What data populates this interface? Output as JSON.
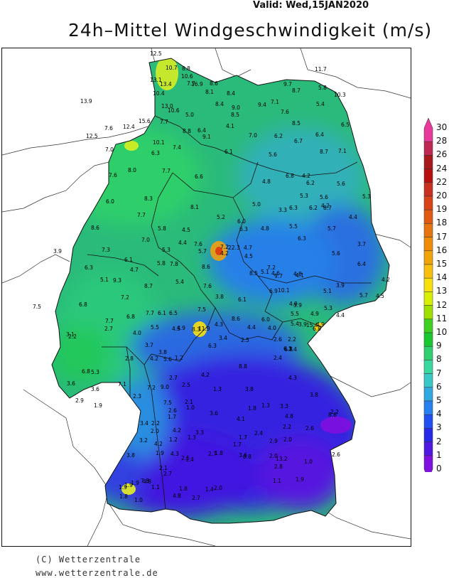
{
  "valid_text": "Valid:  Wed,15JAN2020",
  "title": "24h–Mittel Windgeschwindigkeit (m/s)",
  "credit_line1": "(C) Wetterzentrale",
  "credit_line2": "www.wetterzentrale.de",
  "legend": {
    "ticks": [
      "30",
      "28",
      "26",
      "24",
      "22",
      "20",
      "19",
      "18",
      "17",
      "16",
      "15",
      "14",
      "13",
      "12",
      "11",
      "10",
      "9",
      "8",
      "7",
      "6",
      "5",
      "4",
      "3",
      "2",
      "1",
      "0"
    ],
    "colors": [
      "#e8389c",
      "#c02854",
      "#a8181c",
      "#b81010",
      "#c83020",
      "#d84418",
      "#e05a10",
      "#e87410",
      "#f08c08",
      "#f0a408",
      "#f8c00c",
      "#f8e010",
      "#d8f000",
      "#a0e000",
      "#40d020",
      "#18c830",
      "#30d070",
      "#38d8a0",
      "#38c8c8",
      "#30a8e0",
      "#2880f0",
      "#2050f0",
      "#2828e8",
      "#5018e0",
      "#8010e0"
    ]
  },
  "stations": [
    {
      "t": "12.5"
    },
    {
      "t": "10.7"
    },
    {
      "t": "8.8"
    },
    {
      "t": "13.1"
    },
    {
      "t": "13.4"
    },
    {
      "t": "10.6"
    },
    {
      "t": "7.7"
    },
    {
      "t": "16.9"
    },
    {
      "t": "8.6"
    },
    {
      "t": "11.7"
    },
    {
      "t": "9.7"
    },
    {
      "t": "10.4"
    },
    {
      "t": "8.1"
    },
    {
      "t": "8.4"
    },
    {
      "t": "8.7"
    },
    {
      "t": "5.8"
    },
    {
      "t": "10.3"
    },
    {
      "t": "13.9"
    },
    {
      "t": "13.0"
    },
    {
      "t": "10.6"
    },
    {
      "t": "8.4"
    },
    {
      "t": "9.0"
    },
    {
      "t": "9.4"
    },
    {
      "t": "7.1"
    },
    {
      "t": "5.4"
    },
    {
      "t": "5.0"
    },
    {
      "t": "8.5"
    },
    {
      "t": "8.8"
    },
    {
      "t": "7.6"
    },
    {
      "t": "15.6"
    },
    {
      "t": "7.7"
    },
    {
      "t": "7.6"
    },
    {
      "t": "12.4"
    },
    {
      "t": "8.5"
    },
    {
      "t": "6.4"
    },
    {
      "t": "4.1"
    },
    {
      "t": "6.5"
    },
    {
      "t": "12.5"
    },
    {
      "t": "9.1"
    },
    {
      "t": "10.1"
    },
    {
      "t": "7.0"
    },
    {
      "t": "6.2"
    },
    {
      "t": "6.4"
    },
    {
      "t": "7.0"
    },
    {
      "t": "7.4"
    },
    {
      "t": "6.3"
    },
    {
      "t": "6.1"
    },
    {
      "t": "6.7"
    },
    {
      "t": "8.7"
    },
    {
      "t": "7.1"
    },
    {
      "t": "5.6"
    },
    {
      "t": "8.0"
    },
    {
      "t": "7.7"
    },
    {
      "t": "6.6"
    },
    {
      "t": "7.6"
    },
    {
      "t": "6.8"
    },
    {
      "t": "4.2"
    },
    {
      "t": "4.8"
    },
    {
      "t": "6.2"
    },
    {
      "t": "5.6"
    },
    {
      "t": "5.3"
    },
    {
      "t": "5.6"
    },
    {
      "t": "4.2"
    },
    {
      "t": "5.3"
    },
    {
      "t": "6.0"
    },
    {
      "t": "8.3"
    },
    {
      "t": "5.0"
    },
    {
      "t": "8.1"
    },
    {
      "t": "3.3"
    },
    {
      "t": "6.3"
    },
    {
      "t": "6.2"
    },
    {
      "t": "8.7"
    },
    {
      "t": "7.7"
    },
    {
      "t": "5.2"
    },
    {
      "t": "4.4"
    },
    {
      "t": "8.6"
    },
    {
      "t": "5.8"
    },
    {
      "t": "4.5"
    },
    {
      "t": "6.0"
    },
    {
      "t": "6.3"
    },
    {
      "t": "4.8"
    },
    {
      "t": "5.5"
    },
    {
      "t": "5.7"
    },
    {
      "t": "7.0"
    },
    {
      "t": "4.4"
    },
    {
      "t": "7.6"
    },
    {
      "t": "6.3"
    },
    {
      "t": "3.7"
    },
    {
      "t": "3.9"
    },
    {
      "t": "7.3"
    },
    {
      "t": "5.3"
    },
    {
      "t": "5.7"
    },
    {
      "t": "7.2"
    },
    {
      "t": "22.3"
    },
    {
      "t": "4.7"
    },
    {
      "t": "5.6"
    },
    {
      "t": "4.2"
    },
    {
      "t": "4.5"
    },
    {
      "t": "6.1"
    },
    {
      "t": "5.8"
    },
    {
      "t": "8.6"
    },
    {
      "t": "7.2"
    },
    {
      "t": "6.4"
    },
    {
      "t": "6.3"
    },
    {
      "t": "4.7"
    },
    {
      "t": "7.8"
    },
    {
      "t": "8.5"
    },
    {
      "t": "5.1"
    },
    {
      "t": "4.6"
    },
    {
      "t": "4.8"
    },
    {
      "t": "4.2"
    },
    {
      "t": "5.1"
    },
    {
      "t": "9.3"
    },
    {
      "t": "8.7"
    },
    {
      "t": "5.4"
    },
    {
      "t": "9.7"
    },
    {
      "t": "4.1"
    },
    {
      "t": "3.9"
    },
    {
      "t": "7.6"
    },
    {
      "t": "6.9"
    },
    {
      "t": "5.1"
    },
    {
      "t": "5.7"
    },
    {
      "t": "4.5"
    },
    {
      "t": "7.2"
    },
    {
      "t": "3.8"
    },
    {
      "t": "6.1"
    },
    {
      "t": "4.9"
    },
    {
      "t": "7.5"
    },
    {
      "t": "6.8"
    },
    {
      "t": "10.1"
    },
    {
      "t": "5.9"
    },
    {
      "t": "5.3"
    },
    {
      "t": "6.8"
    },
    {
      "t": "7.7"
    },
    {
      "t": "6.1"
    },
    {
      "t": "6.5"
    },
    {
      "t": "5.5"
    },
    {
      "t": "4.9"
    },
    {
      "t": "4.4"
    },
    {
      "t": "7.5"
    },
    {
      "t": "8.6"
    },
    {
      "t": "6.0"
    },
    {
      "t": "5.4"
    },
    {
      "t": "7.7"
    },
    {
      "t": "5.5"
    },
    {
      "t": "4.5"
    },
    {
      "t": "4.9"
    },
    {
      "t": "8.3"
    },
    {
      "t": "11.9"
    },
    {
      "t": "4.3"
    },
    {
      "t": "4.4"
    },
    {
      "t": "4.0"
    },
    {
      "t": "3.9"
    },
    {
      "t": "15.4"
    },
    {
      "t": "6.8"
    },
    {
      "t": "4.9"
    },
    {
      "t": "3.1"
    },
    {
      "t": "2.7"
    },
    {
      "t": "2.2"
    },
    {
      "t": "4.0"
    },
    {
      "t": "6.3"
    },
    {
      "t": "3.4"
    },
    {
      "t": "2.5"
    },
    {
      "t": "2.6"
    },
    {
      "t": "3.7"
    },
    {
      "t": "3.8"
    },
    {
      "t": "1.2"
    },
    {
      "t": "2.4"
    },
    {
      "t": "6.8"
    },
    {
      "t": "7.4"
    },
    {
      "t": "6.3"
    },
    {
      "t": "2.8"
    },
    {
      "t": "4.2"
    },
    {
      "t": "5.6"
    },
    {
      "t": "2.2"
    },
    {
      "t": "6.8"
    },
    {
      "t": "5.3"
    },
    {
      "t": "8.8"
    },
    {
      "t": "4.2"
    },
    {
      "t": "2.7"
    },
    {
      "t": "4.3"
    },
    {
      "t": "3.6"
    },
    {
      "t": "3.6"
    },
    {
      "t": "7.1"
    },
    {
      "t": "7.2"
    },
    {
      "t": "9.0"
    },
    {
      "t": "2.5"
    },
    {
      "t": "1.3"
    },
    {
      "t": "3.8"
    },
    {
      "t": "2.9"
    },
    {
      "t": "1.9"
    },
    {
      "t": "2.3"
    },
    {
      "t": "7.5"
    },
    {
      "t": "3.8"
    },
    {
      "t": "2.1"
    },
    {
      "t": "2.6"
    },
    {
      "t": "1.0"
    },
    {
      "t": "3.6"
    },
    {
      "t": "1.8"
    },
    {
      "t": "1.3"
    },
    {
      "t": "4.8"
    },
    {
      "t": "2.2"
    },
    {
      "t": "3.3"
    },
    {
      "t": "3.4"
    },
    {
      "t": "2.2"
    },
    {
      "t": "1.7"
    },
    {
      "t": "8.6"
    },
    {
      "t": "2.0"
    },
    {
      "t": "4.2"
    },
    {
      "t": "3.3"
    },
    {
      "t": "2.4"
    },
    {
      "t": "4.1"
    },
    {
      "t": "2.9"
    },
    {
      "t": "2.2"
    },
    {
      "t": "2.6"
    },
    {
      "t": "1.2"
    },
    {
      "t": "1.3"
    },
    {
      "t": "1.7"
    },
    {
      "t": "3.2"
    },
    {
      "t": "4.2"
    },
    {
      "t": "1.7"
    },
    {
      "t": "2.0"
    },
    {
      "t": "1.9"
    },
    {
      "t": "4.3"
    },
    {
      "t": "1.8"
    },
    {
      "t": "3.8"
    },
    {
      "t": "2.7"
    },
    {
      "t": "3.6"
    },
    {
      "t": "0.8"
    },
    {
      "t": "2.0"
    },
    {
      "t": "13.2"
    },
    {
      "t": "2.6"
    },
    {
      "t": "1.0"
    },
    {
      "t": "2.1"
    },
    {
      "t": "2.8"
    },
    {
      "t": "2.5"
    },
    {
      "t": "1.4"
    },
    {
      "t": "2.7"
    },
    {
      "t": "4.8"
    },
    {
      "t": "1.9"
    },
    {
      "t": "1.9"
    },
    {
      "t": "1.1"
    },
    {
      "t": "1.4"
    },
    {
      "t": "1.8"
    },
    {
      "t": "2.0"
    },
    {
      "t": "1.9"
    },
    {
      "t": "1.1"
    },
    {
      "t": "1.9"
    },
    {
      "t": "7.8"
    },
    {
      "t": "4.8"
    },
    {
      "t": "1.8"
    },
    {
      "t": "1.0"
    },
    {
      "t": "2.7"
    }
  ]
}
